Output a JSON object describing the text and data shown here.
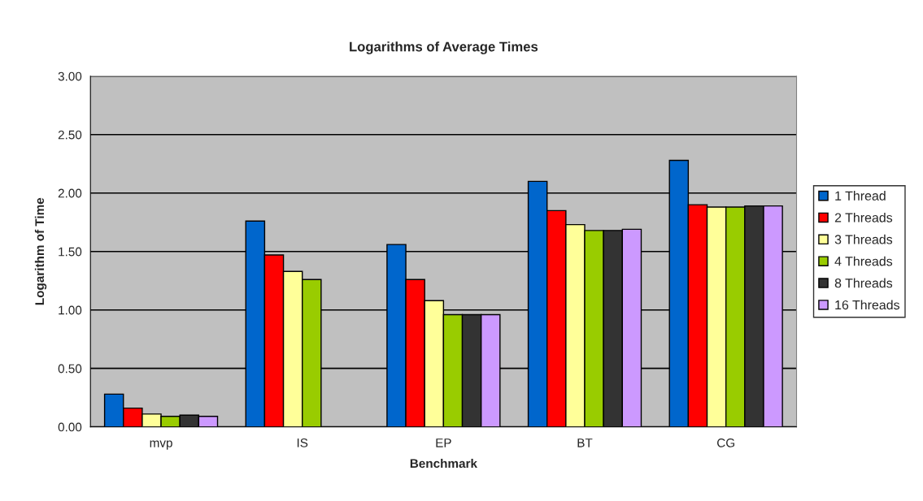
{
  "chart_data": {
    "type": "bar",
    "title": "Logarithms of Average Times",
    "xlabel": "Benchmark",
    "ylabel": "Logarithm of Time",
    "categories": [
      "mvp",
      "IS",
      "EP",
      "BT",
      "CG"
    ],
    "series": [
      {
        "name": "1 Thread",
        "color": "#0066cc",
        "values": [
          0.28,
          1.76,
          1.56,
          2.1,
          2.28
        ]
      },
      {
        "name": "2 Threads",
        "color": "#ff0000",
        "values": [
          0.16,
          1.47,
          1.26,
          1.85,
          1.9
        ]
      },
      {
        "name": "3 Threads",
        "color": "#ffff99",
        "values": [
          0.11,
          1.33,
          1.08,
          1.73,
          1.88
        ]
      },
      {
        "name": "4 Threads",
        "color": "#99cc00",
        "values": [
          0.09,
          1.26,
          0.96,
          1.68,
          1.88
        ]
      },
      {
        "name": "8 Threads",
        "color": "#333333",
        "values": [
          0.1,
          null,
          0.96,
          1.68,
          1.89
        ]
      },
      {
        "name": "16 Threads",
        "color": "#cc99ff",
        "values": [
          0.09,
          null,
          0.96,
          1.69,
          1.89
        ]
      }
    ],
    "ylim": [
      0,
      3
    ],
    "yticks": [
      {
        "value": 0,
        "label": "0.00"
      },
      {
        "value": 0.5,
        "label": "0.50"
      },
      {
        "value": 1,
        "label": "1.00"
      },
      {
        "value": 1.5,
        "label": "1.50"
      },
      {
        "value": 2,
        "label": "2.00"
      },
      {
        "value": 2.5,
        "label": "2.50"
      },
      {
        "value": 3,
        "label": "3.00"
      }
    ],
    "grid": "y",
    "legend": "right"
  }
}
